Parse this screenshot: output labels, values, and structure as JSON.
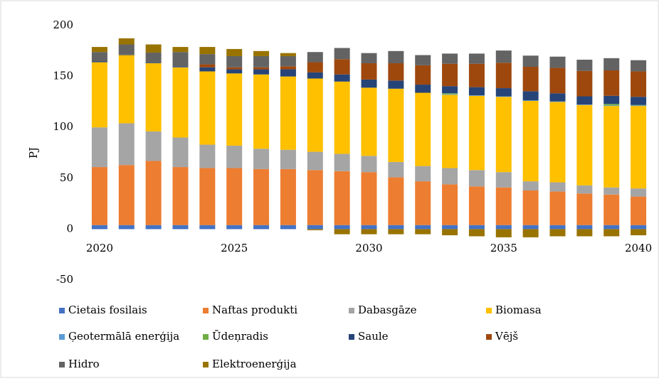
{
  "chart_data": {
    "type": "stacked_bar",
    "axis_label": "PJ",
    "categories": [
      "2020",
      null,
      null,
      null,
      null,
      "2025",
      null,
      null,
      null,
      null,
      "2030",
      null,
      null,
      null,
      null,
      "2035",
      null,
      null,
      null,
      null,
      "2040"
    ],
    "ylim": [
      -50,
      200
    ],
    "yticks": [
      -50,
      0,
      50,
      100,
      150,
      200
    ],
    "grid": false,
    "legend": "bottom",
    "series": [
      {
        "name": "Cietais fosilais",
        "color": "#4472c4",
        "values": [
          4,
          4,
          4,
          4,
          4,
          4,
          4,
          4,
          4,
          4,
          4,
          4,
          4,
          4,
          4,
          4,
          4,
          4,
          4,
          4,
          4
        ]
      },
      {
        "name": "Naftas produkti",
        "color": "#ed7d31",
        "values": [
          57,
          59,
          63,
          57,
          56,
          56,
          55,
          55,
          54,
          53,
          52,
          47,
          43,
          40,
          38,
          37,
          34,
          33,
          31,
          30,
          28
        ]
      },
      {
        "name": "Dabasgāze",
        "color": "#a5a5a5",
        "values": [
          39,
          41,
          29,
          29,
          23,
          22,
          20,
          19,
          18,
          17,
          16,
          15,
          15,
          16,
          16,
          15,
          9,
          9,
          8,
          7,
          8
        ]
      },
      {
        "name": "Biomasa",
        "color": "#ffc000",
        "values": [
          64,
          67,
          67,
          69,
          72,
          71,
          73,
          72,
          72,
          71,
          67,
          72,
          72,
          72,
          73,
          74,
          79,
          79,
          79,
          80,
          81
        ]
      },
      {
        "name": "Ģeotermālā enerģija",
        "color": "#5b9bd5",
        "values": [
          0,
          0,
          0,
          0,
          0,
          0,
          0,
          0,
          0,
          0,
          0,
          0,
          0,
          0.5,
          0.5,
          0.5,
          0.5,
          0.5,
          0.5,
          0.5,
          0.5
        ]
      },
      {
        "name": "Ūdeņradis",
        "color": "#70ad47",
        "values": [
          0,
          0,
          0,
          0,
          0,
          0,
          0,
          0,
          0,
          0,
          0,
          0,
          0,
          1,
          0,
          0,
          0,
          0,
          0,
          1.5,
          0.5
        ]
      },
      {
        "name": "Saule",
        "color": "#264478",
        "values": [
          1,
          0.5,
          0.5,
          1,
          4,
          4,
          5,
          7,
          6,
          7,
          8,
          8,
          8,
          7,
          8,
          8,
          9,
          8,
          8,
          8,
          8
        ]
      },
      {
        "name": "Vējš",
        "color": "#9e480e",
        "values": [
          0,
          0,
          0,
          0,
          3,
          2,
          2,
          3,
          10,
          15,
          16,
          17,
          19,
          22,
          23,
          25,
          24,
          25,
          25,
          25,
          25
        ]
      },
      {
        "name": "Hidro",
        "color": "#636363",
        "values": [
          9,
          10,
          10,
          14,
          10,
          11,
          11,
          10,
          10,
          11,
          10,
          12,
          10,
          10,
          10,
          12,
          11,
          11,
          11,
          12,
          11
        ]
      },
      {
        "name": "Elektroenerģija",
        "color": "#997300",
        "values": [
          5,
          6,
          8,
          5,
          7,
          7,
          5,
          3,
          -1,
          -5,
          -5,
          -5,
          -5,
          -6,
          -7,
          -8,
          -8,
          -7,
          -7,
          -7,
          -6
        ]
      }
    ]
  }
}
